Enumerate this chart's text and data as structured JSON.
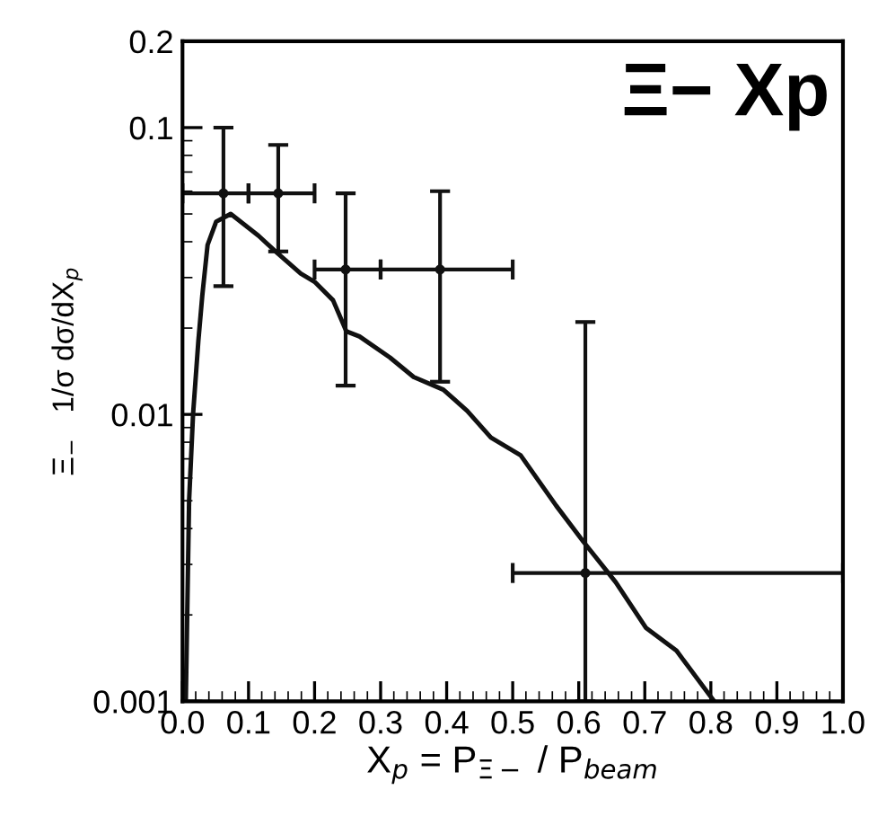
{
  "chart_data": {
    "type": "line",
    "title": "Ξ− Xp",
    "xlabel": "X$_{p}$ = P$_{Ξ−}$ / P$_{beam}$",
    "ylabel": "Ξ$_{−}$   1/σ dσ/dX$_{p}$",
    "log": "y",
    "grid": false,
    "legend": false,
    "xlim": [
      0,
      1
    ],
    "xticks": [
      {
        "value": 0,
        "label": "0.0"
      },
      0.1,
      0.2,
      0.3,
      0.4,
      0.5,
      0.6,
      0.7,
      0.8,
      0.9,
      {
        "value": 1,
        "label": "1.0"
      }
    ],
    "ylim": [
      0.001,
      0.2
    ],
    "yticks": [
      0.001,
      0.01,
      0.1,
      0.2
    ],
    "series": [
      {
        "color": "#111111",
        "marker": "none",
        "line_style": "solid",
        "x": [
          0.005,
          0.01,
          0.016,
          0.024,
          0.03,
          0.038,
          0.051,
          0.073,
          0.115,
          0.141,
          0.179,
          0.2,
          0.228,
          0.248,
          0.268,
          0.314,
          0.35,
          0.395,
          0.431,
          0.467,
          0.512,
          0.566,
          0.607,
          0.656,
          0.702,
          0.748,
          0.805
        ],
        "values": [
          0.001,
          0.005,
          0.01,
          0.018,
          0.026,
          0.039,
          0.047,
          0.05,
          0.042,
          0.037,
          0.031,
          0.029,
          0.025,
          0.0195,
          0.0187,
          0.0158,
          0.0135,
          0.0122,
          0.0103,
          0.0083,
          0.0072,
          0.0048,
          0.0036,
          0.0026,
          0.0018,
          0.0015,
          0.001
        ]
      },
      {
        "type": "scatter",
        "color": "#111111",
        "marker": "circle",
        "x": [
          0.062,
          0.145,
          0.247,
          0.39,
          0.61
        ],
        "values": [
          0.059,
          0.059,
          0.032,
          0.032,
          0.0028
        ],
        "errors": [
          [
            0.028,
            0.1
          ],
          [
            0.037,
            0.087
          ],
          [
            0.0126,
            0.059
          ],
          [
            0.013,
            0.06
          ],
          [
            0.001,
            0.021
          ]
        ],
        "xerrors": [
          [
            0,
            0.1
          ],
          [
            0.1,
            0.2
          ],
          [
            0.2,
            0.3
          ],
          [
            0.3,
            0.5
          ],
          [
            0.5,
            1.0
          ]
        ]
      }
    ]
  }
}
